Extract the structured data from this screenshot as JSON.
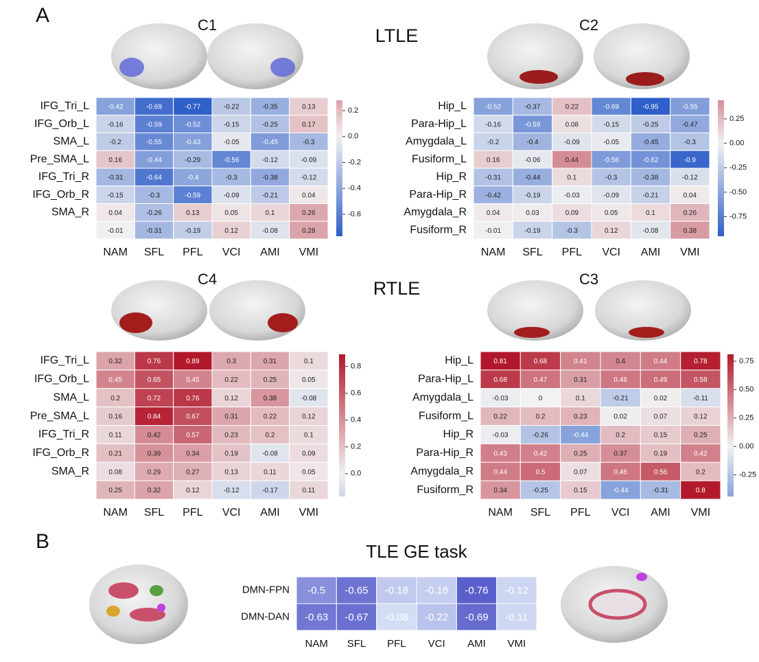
{
  "panel_labels": [
    "A",
    "B"
  ],
  "group_labels": [
    "LTLE",
    "RTLE"
  ],
  "chart_data": [
    {
      "type": "heatmap",
      "title": "C1",
      "rows": [
        "IFG_Tri_L",
        "IFG_Orb_L",
        "SMA_L",
        "Pre_SMA_L",
        "IFG_Tri_R",
        "IFG_Orb_R",
        "SMA_R",
        null
      ],
      "columns": [
        "NAM",
        "SFL",
        "PFL",
        "VCI",
        "AMI",
        "VMI"
      ],
      "values": [
        [
          -0.42,
          -0.69,
          -0.77,
          -0.22,
          -0.35,
          0.13
        ],
        [
          -0.16,
          -0.59,
          -0.52,
          -0.15,
          -0.25,
          0.17
        ],
        [
          -0.2,
          -0.55,
          -0.43,
          -0.05,
          -0.45,
          -0.3
        ],
        [
          0.16,
          -0.44,
          -0.29,
          -0.56,
          -0.12,
          -0.09
        ],
        [
          -0.31,
          -0.64,
          -0.4,
          -0.3,
          -0.38,
          -0.12
        ],
        [
          -0.15,
          -0.3,
          -0.59,
          -0.09,
          -0.21,
          0.04
        ],
        [
          0.04,
          -0.26,
          0.13,
          0.05,
          0.1,
          0.26
        ],
        [
          -0.01,
          -0.31,
          -0.19,
          0.12,
          -0.08,
          0.28
        ]
      ],
      "cmap": [
        "#2f5fc8",
        "#f2f2f2",
        "#b2182b"
      ],
      "clim": [
        -0.77,
        0.28
      ],
      "colorbar_ticks": [
        0.2,
        {
          "value": 0,
          "label": "0.0"
        },
        -0.2,
        -0.4,
        -0.6
      ]
    },
    {
      "type": "heatmap",
      "title": "C2",
      "rows": [
        "Hip_L",
        "Para-Hip_L",
        "Amygdala_L",
        "Fusiform_L",
        "Hip_R",
        "Para-Hip_R",
        "Amygdala_R",
        "Fusiform_R"
      ],
      "columns": [
        "NAM",
        "SFL",
        "PFL",
        "VCI",
        "AMI",
        "VMI"
      ],
      "values": [
        [
          -0.52,
          -0.37,
          0.22,
          -0.69,
          -0.95,
          -0.55
        ],
        [
          -0.16,
          -0.59,
          0.08,
          -0.15,
          -0.25,
          -0.47
        ],
        [
          -0.2,
          -0.4,
          -0.09,
          -0.05,
          -0.45,
          -0.3
        ],
        [
          0.16,
          -0.06,
          0.44,
          -0.56,
          -0.62,
          -0.9
        ],
        [
          -0.31,
          -0.44,
          0.1,
          -0.3,
          -0.38,
          -0.12
        ],
        [
          -0.42,
          -0.19,
          -0.03,
          -0.09,
          -0.21,
          0.04
        ],
        [
          0.04,
          0.03,
          0.09,
          0.05,
          0.1,
          0.26
        ],
        [
          -0.01,
          -0.19,
          -0.3,
          0.12,
          -0.08,
          0.38
        ]
      ],
      "cmap": [
        "#2f5fc8",
        "#f2f2f2",
        "#b2182b"
      ],
      "clim": [
        -0.95,
        0.44
      ],
      "colorbar_ticks": [
        0.25,
        {
          "value": 0,
          "label": "0.00"
        },
        -0.25,
        {
          "value": -0.5,
          "label": "-0.50"
        },
        -0.75
      ]
    },
    {
      "type": "heatmap",
      "title": "C4",
      "rows": [
        "IFG_Tri_L",
        "IFG_Orb_L",
        "SMA_L",
        "Pre_SMA_L",
        "IFG_Tri_R",
        "IFG_Orb_R",
        "SMA_R",
        null
      ],
      "columns": [
        "NAM",
        "SFL",
        "PFL",
        "VCI",
        "AMI",
        "VMI"
      ],
      "values": [
        [
          0.32,
          0.76,
          0.89,
          0.3,
          0.31,
          0.1
        ],
        [
          0.45,
          0.65,
          0.45,
          0.22,
          0.25,
          0.05
        ],
        [
          0.2,
          0.72,
          0.76,
          0.12,
          0.38,
          -0.08
        ],
        [
          0.16,
          0.84,
          0.67,
          0.31,
          0.22,
          0.12
        ],
        [
          0.11,
          0.42,
          0.57,
          0.23,
          0.2,
          0.1
        ],
        [
          0.21,
          0.39,
          0.34,
          0.19,
          -0.08,
          0.09
        ],
        [
          0.08,
          0.29,
          0.27,
          0.13,
          0.11,
          0.05
        ],
        [
          0.25,
          0.32,
          0.12,
          -0.12,
          -0.17,
          0.11
        ]
      ],
      "cmap": [
        "#2f5fc8",
        "#f2f2f2",
        "#b2182b"
      ],
      "clim": [
        -0.17,
        0.89
      ],
      "colorbar_ticks": [
        0.8,
        0.6,
        0.4,
        0.2,
        {
          "value": 0,
          "label": "0.0"
        }
      ]
    },
    {
      "type": "heatmap",
      "title": "C3",
      "rows": [
        "Hip_L",
        "Para-Hip_L",
        "Amygdala_L",
        "Fusiform_L",
        "Hip_R",
        "Para-Hip_R",
        "Amygdala_R",
        "Fusiform_R"
      ],
      "columns": [
        "NAM",
        "SFL",
        "PFL",
        "VCI",
        "AMI",
        "VMI"
      ],
      "values": [
        [
          0.81,
          0.68,
          0.41,
          0.4,
          0.44,
          0.78
        ],
        [
          0.68,
          0.47,
          0.31,
          0.46,
          0.49,
          0.58
        ],
        [
          -0.03,
          0,
          0.1,
          -0.21,
          0.02,
          -0.11
        ],
        [
          0.22,
          0.2,
          0.23,
          0.02,
          0.07,
          0.12
        ],
        [
          -0.03,
          -0.26,
          -0.44,
          0.2,
          0.15,
          0.25
        ],
        [
          0.43,
          0.42,
          0.25,
          0.37,
          0.19,
          0.42
        ],
        [
          0.44,
          0.5,
          0.07,
          0.46,
          0.56,
          0.2
        ],
        [
          0.34,
          -0.25,
          0.15,
          -0.44,
          -0.31,
          0.8
        ]
      ],
      "cmap": [
        "#2f5fc8",
        "#f2f2f2",
        "#b2182b"
      ],
      "clim": [
        -0.44,
        0.81
      ],
      "colorbar_ticks": [
        0.75,
        {
          "value": 0.5,
          "label": "0.50"
        },
        0.25,
        {
          "value": 0,
          "label": "0.00"
        },
        -0.25
      ]
    },
    {
      "type": "heatmap",
      "title": "TLE GE task",
      "rows": [
        "DMN-FPN",
        "DMN-DAN"
      ],
      "columns": [
        "NAM",
        "SFL",
        "PFL",
        "VCI",
        "AMI",
        "VMI"
      ],
      "values": [
        [
          -0.5,
          -0.65,
          -0.18,
          -0.16,
          -0.76,
          -0.12
        ],
        [
          -0.63,
          -0.67,
          -0.08,
          -0.22,
          -0.69,
          -0.11
        ]
      ],
      "cmap": [
        "#5a5fcb",
        "#d3ddf4"
      ],
      "clim": [
        -0.76,
        -0.08
      ]
    }
  ]
}
